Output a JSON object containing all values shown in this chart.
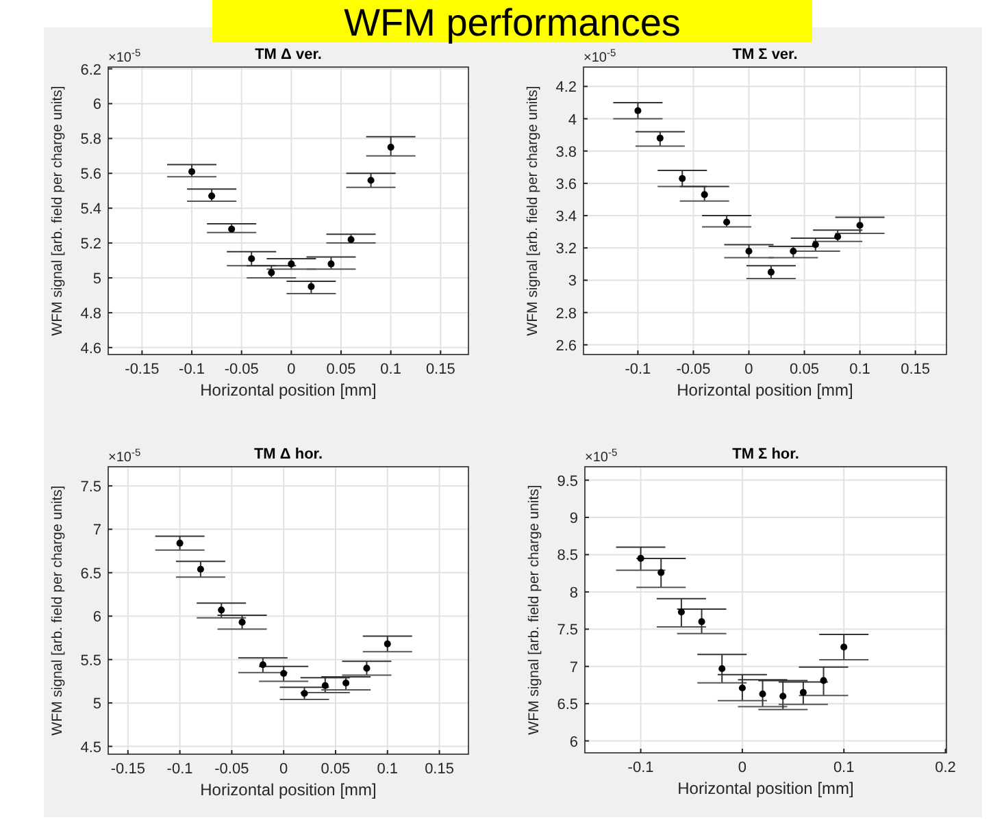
{
  "chart_data": [
    {
      "type": "scatter",
      "title": "TM Δ ver.",
      "xlabel": "Horizontal position [mm]",
      "ylabel": "WFM signal [arb. field per charge units]",
      "annotations": [
        "×10$^{-5}$",
        "WFM performances"
      ],
      "x": [
        -0.1,
        -0.08,
        -0.06,
        -0.04,
        -0.02,
        0,
        0.02,
        0.04,
        0.06,
        0.08,
        0.1
      ],
      "values": [
        5.61,
        5.47,
        5.28,
        5.11,
        5.03,
        5.08,
        4.95,
        5.08,
        5.22,
        5.56,
        5.75
      ],
      "errors": [
        [
          5.58,
          5.65
        ],
        [
          5.44,
          5.51
        ],
        [
          5.26,
          5.31
        ],
        [
          5.07,
          5.15
        ],
        [
          5.0,
          5.07
        ],
        [
          5.05,
          5.11
        ],
        [
          4.91,
          4.98
        ],
        [
          5.05,
          5.12
        ],
        [
          5.2,
          5.25
        ],
        [
          5.52,
          5.6
        ],
        [
          5.7,
          5.81
        ]
      ],
      "color": "#000000",
      "marker": "circle",
      "grid": true,
      "xlim": [
        -0.184,
        0.178
      ],
      "ylim": [
        4.56,
        6.21
      ],
      "xticks": [
        -0.15,
        -0.1,
        -0.05,
        0,
        0.05,
        0.1,
        0.15
      ],
      "yticks": [
        4.6,
        4.8,
        5,
        5.2,
        5.4,
        5.6,
        5.8,
        6,
        6.2
      ]
    },
    {
      "type": "scatter",
      "title": "TM Σ ver.",
      "xlabel": "Horizontal position [mm]",
      "ylabel": "WFM signal [arb. field per charge units]",
      "annotations": [
        "×10$^{-5}$"
      ],
      "x": [
        -0.1,
        -0.08,
        -0.06,
        -0.04,
        -0.02,
        0,
        0.02,
        0.04,
        0.06,
        0.08,
        0.1
      ],
      "values": [
        4.05,
        3.88,
        3.63,
        3.53,
        3.36,
        3.18,
        3.05,
        3.18,
        3.22,
        3.27,
        3.34
      ],
      "errors": [
        [
          4.0,
          4.1
        ],
        [
          3.83,
          3.92
        ],
        [
          3.58,
          3.68
        ],
        [
          3.49,
          3.58
        ],
        [
          3.33,
          3.4
        ],
        [
          3.14,
          3.22
        ],
        [
          3.01,
          3.09
        ],
        [
          3.14,
          3.21
        ],
        [
          3.18,
          3.26
        ],
        [
          3.24,
          3.31
        ],
        [
          3.29,
          3.39
        ]
      ],
      "color": "#000000",
      "marker": "circle",
      "grid": true,
      "xlim": [
        -0.149,
        0.178
      ],
      "ylim": [
        2.54,
        4.32
      ],
      "xticks": [
        -0.1,
        -0.05,
        0,
        0.05,
        0.1,
        0.15
      ],
      "yticks": [
        2.6,
        2.8,
        3,
        3.2,
        3.4,
        3.6,
        3.8,
        4,
        4.2
      ]
    },
    {
      "type": "scatter",
      "title": "TM Δ hor.",
      "xlabel": "Horizontal position [mm]",
      "ylabel": "WFM signal [arb. field per charge units]",
      "annotations": [
        "×10$^{-5}$"
      ],
      "x": [
        -0.1,
        -0.08,
        -0.06,
        -0.04,
        -0.02,
        0,
        0.02,
        0.04,
        0.06,
        0.08,
        0.1
      ],
      "values": [
        6.84,
        6.54,
        6.07,
        5.93,
        5.44,
        5.34,
        5.11,
        5.2,
        5.23,
        5.4,
        5.68
      ],
      "errors": [
        [
          6.76,
          6.92
        ],
        [
          6.45,
          6.63
        ],
        [
          5.98,
          6.15
        ],
        [
          5.85,
          6.01
        ],
        [
          5.35,
          5.52
        ],
        [
          5.25,
          5.42
        ],
        [
          5.04,
          5.18
        ],
        [
          5.12,
          5.29
        ],
        [
          5.15,
          5.3
        ],
        [
          5.32,
          5.48
        ],
        [
          5.59,
          5.77
        ]
      ],
      "color": "#000000",
      "marker": "circle",
      "grid": true,
      "xlim": [
        -0.169,
        0.178
      ],
      "ylim": [
        4.41,
        7.72
      ],
      "xticks": [
        -0.15,
        -0.1,
        -0.05,
        0,
        0.05,
        0.1,
        0.15
      ],
      "yticks": [
        4.5,
        5,
        5.5,
        6,
        6.5,
        7,
        7.5
      ]
    },
    {
      "type": "scatter",
      "title": "TM Σ hor.",
      "xlabel": "Horizontal position [mm]",
      "ylabel": "WFM signal [arb. field per charge units]",
      "annotations": [
        "×10$^{-5}$"
      ],
      "x": [
        -0.1,
        -0.08,
        -0.06,
        -0.04,
        -0.02,
        0,
        0.02,
        0.04,
        0.06,
        0.08,
        0.1
      ],
      "values": [
        8.45,
        8.26,
        7.73,
        7.6,
        6.97,
        6.71,
        6.63,
        6.6,
        6.65,
        6.81,
        7.26
      ],
      "errors": [
        [
          8.29,
          8.6
        ],
        [
          8.06,
          8.45
        ],
        [
          7.53,
          7.91
        ],
        [
          7.44,
          7.77
        ],
        [
          6.78,
          7.16
        ],
        [
          6.54,
          6.89
        ],
        [
          6.46,
          6.82
        ],
        [
          6.42,
          6.81
        ],
        [
          6.49,
          6.79
        ],
        [
          6.61,
          6.99
        ],
        [
          7.09,
          7.43
        ]
      ],
      "color": "#000000",
      "marker": "circle",
      "grid": true,
      "xlim": [
        -0.155,
        0.201
      ],
      "ylim": [
        5.84,
        9.68
      ],
      "xticks": [
        -0.1,
        0,
        0.1,
        0.2
      ],
      "yticks": [
        6,
        6.5,
        7,
        7.5,
        8,
        8.5,
        9,
        9.5
      ]
    }
  ]
}
